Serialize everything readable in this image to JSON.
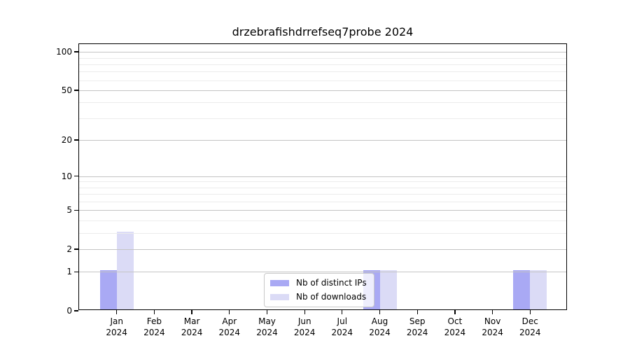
{
  "chart_data": {
    "type": "bar",
    "title": "drzebrafishdrrefseq7probe 2024",
    "categories": [
      "Jan",
      "Feb",
      "Mar",
      "Apr",
      "May",
      "Jun",
      "Jul",
      "Aug",
      "Sep",
      "Oct",
      "Nov",
      "Dec"
    ],
    "year": "2024",
    "series": [
      {
        "name": "Nb of distinct IPs",
        "color": "#a9a9f4",
        "values": [
          1,
          0,
          0,
          0,
          0,
          0,
          0,
          1,
          0,
          0,
          0,
          1
        ]
      },
      {
        "name": "Nb of downloads",
        "color": "#dbdbf6",
        "values": [
          3,
          0,
          0,
          0,
          0,
          0,
          0,
          1,
          0,
          0,
          0,
          1
        ]
      }
    ],
    "y_axis": {
      "scale": "log10(1+value)",
      "ticks": [
        0,
        1,
        2,
        5,
        10,
        20,
        50,
        100
      ],
      "minor_gridlines": [
        3,
        4,
        6,
        7,
        8,
        9,
        30,
        40,
        60,
        70,
        80,
        90
      ],
      "ylim": [
        0,
        114
      ]
    },
    "legend": {
      "position": "lower center"
    },
    "grid": true,
    "colors": {
      "axis": "#000000",
      "grid_major": "#c4c4c4",
      "grid_minor": "#ececec"
    }
  }
}
